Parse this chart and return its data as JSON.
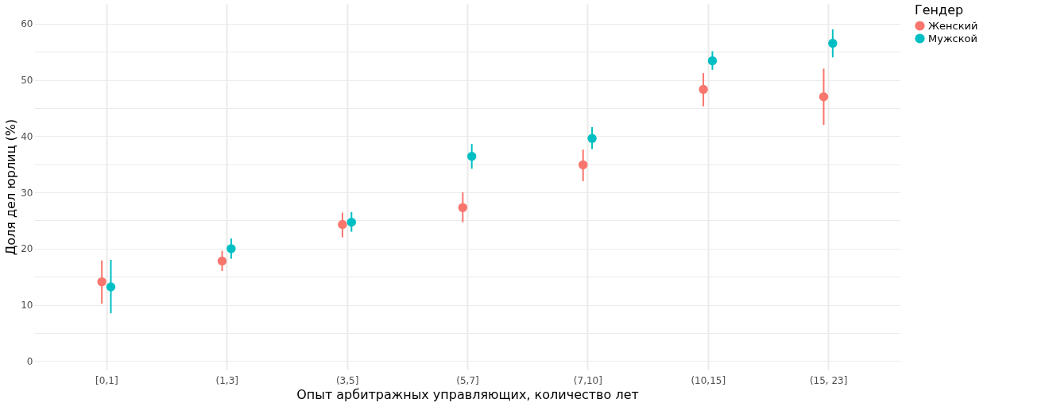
{
  "chart_data": {
    "type": "scatter",
    "xlabel": "Опыт арбитражных управляющих, количество лет",
    "ylabel": "Доля дел юрлиц (%)",
    "legend_title": "Гендер",
    "categories": [
      "[0,1]",
      "(1,3]",
      "(3,5]",
      "(5,7]",
      "(7,10]",
      "(10,15]",
      "(15, 23]"
    ],
    "series": [
      {
        "name": "Женский",
        "color": "#f8766d",
        "values": [
          14.1,
          17.8,
          24.3,
          27.3,
          34.9,
          48.3,
          47.0
        ],
        "errors": [
          [
            10.2,
            17.9
          ],
          [
            16.0,
            19.6
          ],
          [
            22.0,
            26.4
          ],
          [
            24.7,
            30.0
          ],
          [
            32.0,
            37.6
          ],
          [
            45.3,
            51.2
          ],
          [
            42.0,
            52.0
          ]
        ]
      },
      {
        "name": "Мужской",
        "color": "#00bfc4",
        "values": [
          13.2,
          20.0,
          24.7,
          36.4,
          39.6,
          53.4,
          56.5
        ],
        "errors": [
          [
            8.5,
            18.0
          ],
          [
            18.2,
            21.8
          ],
          [
            23.0,
            26.5
          ],
          [
            34.2,
            38.6
          ],
          [
            37.7,
            41.6
          ],
          [
            51.8,
            55.1
          ],
          [
            54.0,
            59.0
          ]
        ]
      }
    ],
    "ylim": [
      -1.5,
      63.5
    ],
    "yticks": [
      0,
      {
        "value": 5,
        "label": null
      },
      10,
      {
        "value": 15,
        "label": null
      },
      20,
      {
        "value": 25,
        "label": null
      },
      30,
      {
        "value": 35,
        "label": null
      },
      40,
      {
        "value": 45,
        "label": null
      },
      50,
      {
        "value": 55,
        "label": null
      },
      60
    ],
    "grid": true,
    "legend": "right",
    "marker": "circle"
  }
}
